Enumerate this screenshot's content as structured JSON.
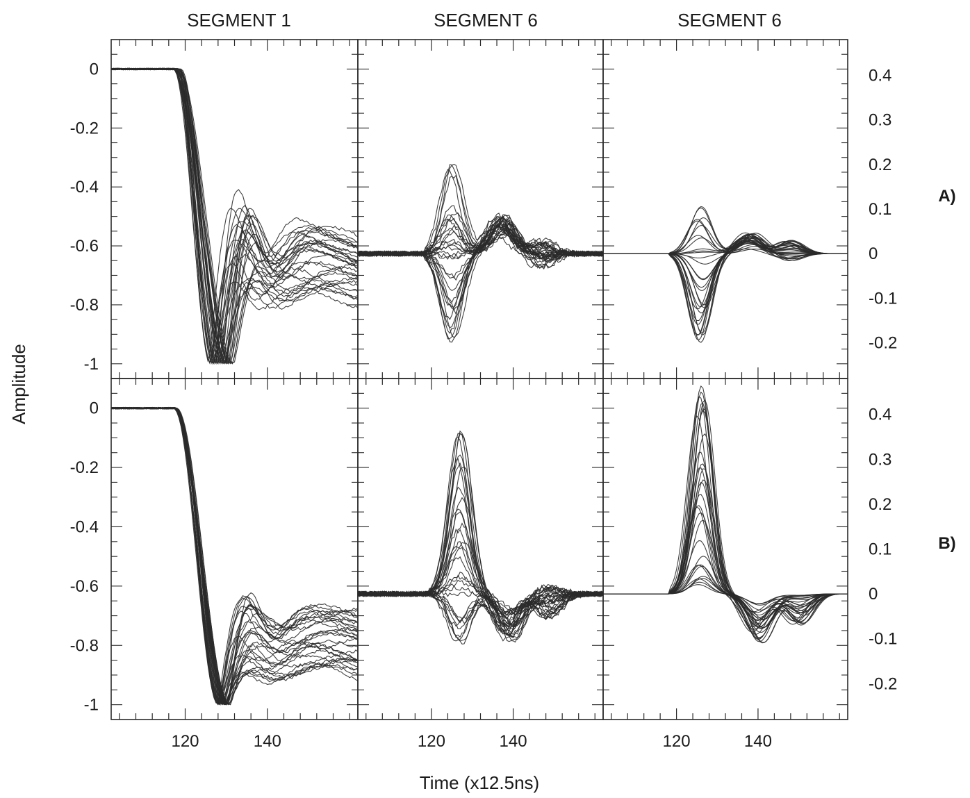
{
  "figure": {
    "column_titles": [
      "SEGMENT 1",
      "SEGMENT 6",
      "SEGMENT 6"
    ],
    "row_labels": [
      "A)",
      "B)"
    ],
    "ylabel": "Amplitude",
    "xlabel": "Time (x12.5ns)",
    "ink_color": "#2a2a2a"
  },
  "chart_data": {
    "type": "line",
    "xlim": [
      102,
      162
    ],
    "x_ticks": [
      120,
      140
    ],
    "x_tick_labels": [
      "120",
      "140"
    ],
    "left_axis": {
      "ylim": [
        -1.05,
        0.1
      ],
      "ticks": [
        0,
        -0.2,
        -0.4,
        -0.6,
        -0.8,
        -1
      ],
      "tick_labels": [
        "0",
        "-0.2",
        "-0.4",
        "-0.6",
        "-0.8",
        "-1"
      ]
    },
    "right_axis": {
      "ylim": [
        -0.28,
        0.48
      ],
      "ticks": [
        0.4,
        0.3,
        0.2,
        0.1,
        0,
        -0.1,
        -0.2
      ],
      "tick_labels": [
        "0.4",
        "0.3",
        "0.2",
        "0.1",
        "0",
        "-0.1",
        "-0.2"
      ]
    },
    "panels": [
      {
        "row": "A)",
        "column": "SEGMENT 1",
        "axis": "left",
        "kind": "step",
        "n_traces": 30,
        "t_start": [
          117,
          119
        ],
        "t_min": [
          126,
          132
        ],
        "rise_fraction": [
          0.55,
          0.78
        ],
        "min_value": -1,
        "baseline": 0
      },
      {
        "row": "A)",
        "column": "SEGMENT 6",
        "axis": "right",
        "kind": "bipolar",
        "n_traces": 32,
        "onset": 118,
        "peak1_t": 125,
        "peak1_amp": [
          -0.23,
          0.21
        ],
        "peak2_t": 137,
        "peak2_amp": [
          0.04,
          0.09
        ],
        "noise": 0.006
      },
      {
        "row": "A)",
        "column": "SEGMENT 6",
        "axis": "right",
        "kind": "bipolar",
        "n_traces": 30,
        "onset": 118,
        "peak1_t": 126,
        "peak1_amp": [
          -0.2,
          0.12
        ],
        "peak2_t": 138,
        "peak2_amp": [
          0.01,
          0.05
        ],
        "noise": 0.0
      },
      {
        "row": "B)",
        "column": "SEGMENT 1",
        "axis": "left",
        "kind": "step",
        "n_traces": 30,
        "t_start": [
          117,
          118
        ],
        "t_min": [
          128,
          131
        ],
        "rise_fraction": [
          0.7,
          0.9
        ],
        "min_value": -1,
        "baseline": 0
      },
      {
        "row": "B)",
        "column": "SEGMENT 6",
        "axis": "right",
        "kind": "bipolar",
        "n_traces": 32,
        "onset": 119,
        "peak1_t": 127,
        "peak1_amp": [
          -0.11,
          0.37
        ],
        "peak2_t": 139,
        "peak2_amp": [
          -0.11,
          -0.03
        ],
        "noise": 0.006
      },
      {
        "row": "B)",
        "column": "SEGMENT 6",
        "axis": "right",
        "kind": "bipolar",
        "n_traces": 30,
        "onset": 118,
        "peak1_t": 126,
        "peak1_amp": [
          0.02,
          0.47
        ],
        "peak2_t": 140,
        "peak2_amp": [
          -0.11,
          -0.01
        ],
        "noise": 0.0
      }
    ]
  }
}
